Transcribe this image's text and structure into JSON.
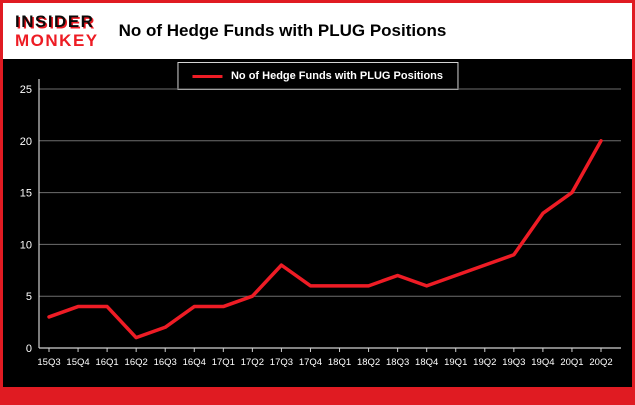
{
  "header": {
    "brand_line1": "INSIDER",
    "brand_line2": "MONKEY",
    "title": "No of Hedge Funds with PLUG Positions"
  },
  "legend": {
    "label": "No of Hedge Funds with PLUG Positions"
  },
  "chart_data": {
    "type": "line",
    "title": "No of Hedge Funds with PLUG Positions",
    "categories": [
      "15Q3",
      "15Q4",
      "16Q1",
      "16Q2",
      "16Q3",
      "16Q4",
      "17Q1",
      "17Q2",
      "17Q3",
      "17Q4",
      "18Q1",
      "18Q2",
      "18Q3",
      "18Q4",
      "19Q1",
      "19Q2",
      "19Q3",
      "19Q4",
      "20Q1",
      "20Q2"
    ],
    "values": [
      3,
      4,
      4,
      1,
      2,
      4,
      4,
      5,
      8,
      6,
      6,
      6,
      7,
      6,
      7,
      8,
      9,
      13,
      15,
      20
    ],
    "xlabel": "",
    "ylabel": "",
    "ylim": [
      0,
      25
    ],
    "yticks": [
      0,
      5,
      10,
      15,
      20,
      25
    ],
    "grid": true,
    "legend_position": "top-center",
    "line_color": "#ee1c25",
    "grid_color": "#6e6e6e",
    "axis_color": "#cfcfcf",
    "tick_label_color": "#ffffff",
    "plot_background": "#000000"
  },
  "colors": {
    "accent_red": "#e01b22",
    "header_background": "#ffffff",
    "chart_background": "#000000"
  }
}
